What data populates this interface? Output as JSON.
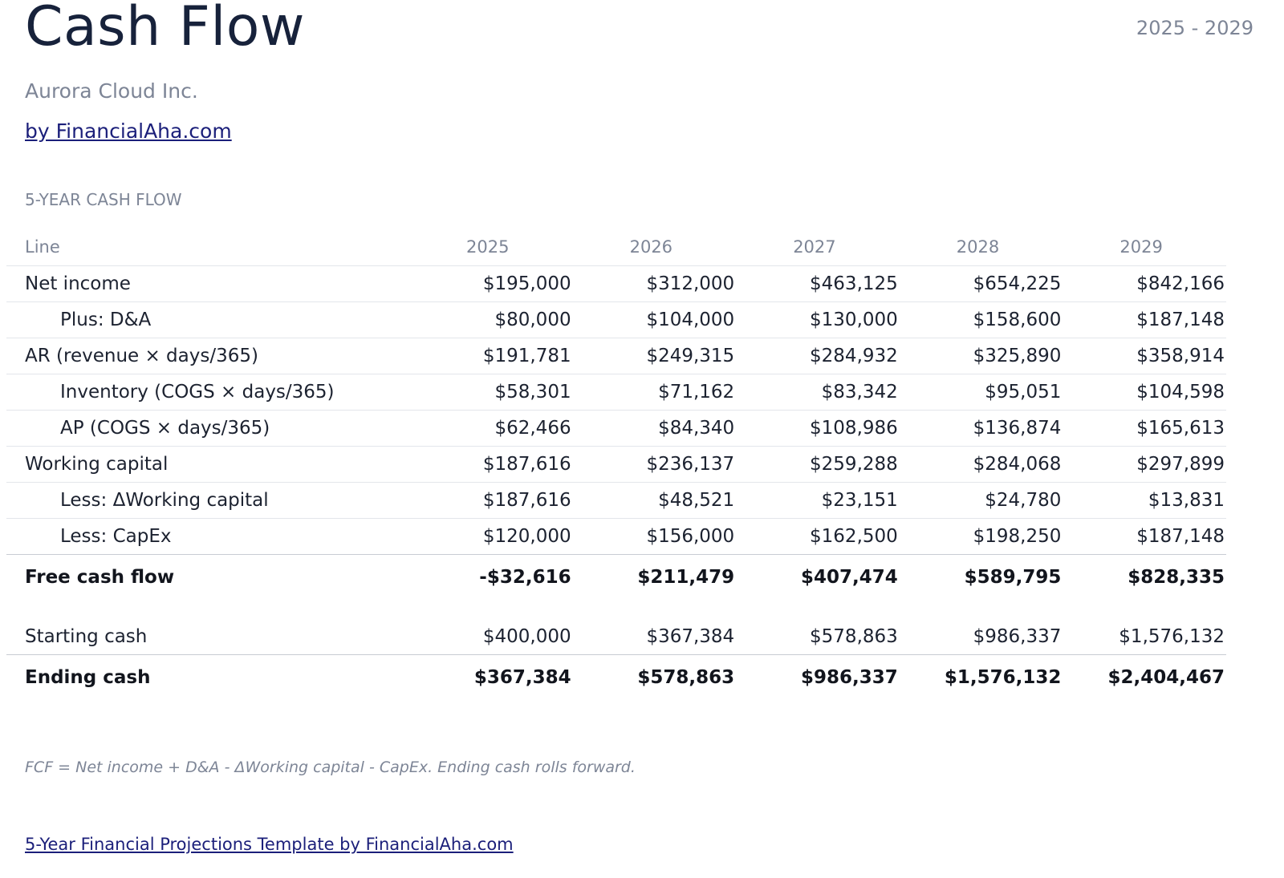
{
  "header": {
    "title": "Cash Flow",
    "period": "2025 - 2029",
    "company": "Aurora Cloud Inc.",
    "byline": "by FinancialAha.com"
  },
  "section": {
    "label": "5-YEAR CASH FLOW"
  },
  "table": {
    "columns": [
      "Line",
      "2025",
      "2026",
      "2027",
      "2028",
      "2029"
    ],
    "rows": [
      {
        "label": "Net income",
        "values": [
          "$195,000",
          "$312,000",
          "$463,125",
          "$654,225",
          "$842,166"
        ]
      },
      {
        "label": "Plus: D&A",
        "values": [
          "$80,000",
          "$104,000",
          "$130,000",
          "$158,600",
          "$187,148"
        ]
      },
      {
        "label": "AR (revenue × days/365)",
        "values": [
          "$191,781",
          "$249,315",
          "$284,932",
          "$325,890",
          "$358,914"
        ]
      },
      {
        "label": "Inventory (COGS × days/365)",
        "values": [
          "$58,301",
          "$71,162",
          "$83,342",
          "$95,051",
          "$104,598"
        ]
      },
      {
        "label": "AP (COGS × days/365)",
        "values": [
          "$62,466",
          "$84,340",
          "$108,986",
          "$136,874",
          "$165,613"
        ]
      },
      {
        "label": "Working capital",
        "values": [
          "$187,616",
          "$236,137",
          "$259,288",
          "$284,068",
          "$297,899"
        ]
      },
      {
        "label": "Less: ΔWorking capital",
        "values": [
          "$187,616",
          "$48,521",
          "$23,151",
          "$24,780",
          "$13,831"
        ]
      },
      {
        "label": "Less: CapEx",
        "values": [
          "$120,000",
          "$156,000",
          "$162,500",
          "$198,250",
          "$187,148"
        ]
      },
      {
        "label": "Free cash flow",
        "values": [
          "-$32,616",
          "$211,479",
          "$407,474",
          "$589,795",
          "$828,335"
        ]
      },
      {
        "label": "Starting cash",
        "values": [
          "$400,000",
          "$367,384",
          "$578,863",
          "$986,337",
          "$1,576,132"
        ]
      },
      {
        "label": "Ending cash",
        "values": [
          "$367,384",
          "$578,863",
          "$986,337",
          "$1,576,132",
          "$2,404,467"
        ]
      }
    ]
  },
  "note": "FCF = Net income + D&A - ΔWorking capital - CapEx. Ending cash rolls forward.",
  "footer": {
    "link": "5-Year Financial Projections Template by FinancialAha.com"
  }
}
